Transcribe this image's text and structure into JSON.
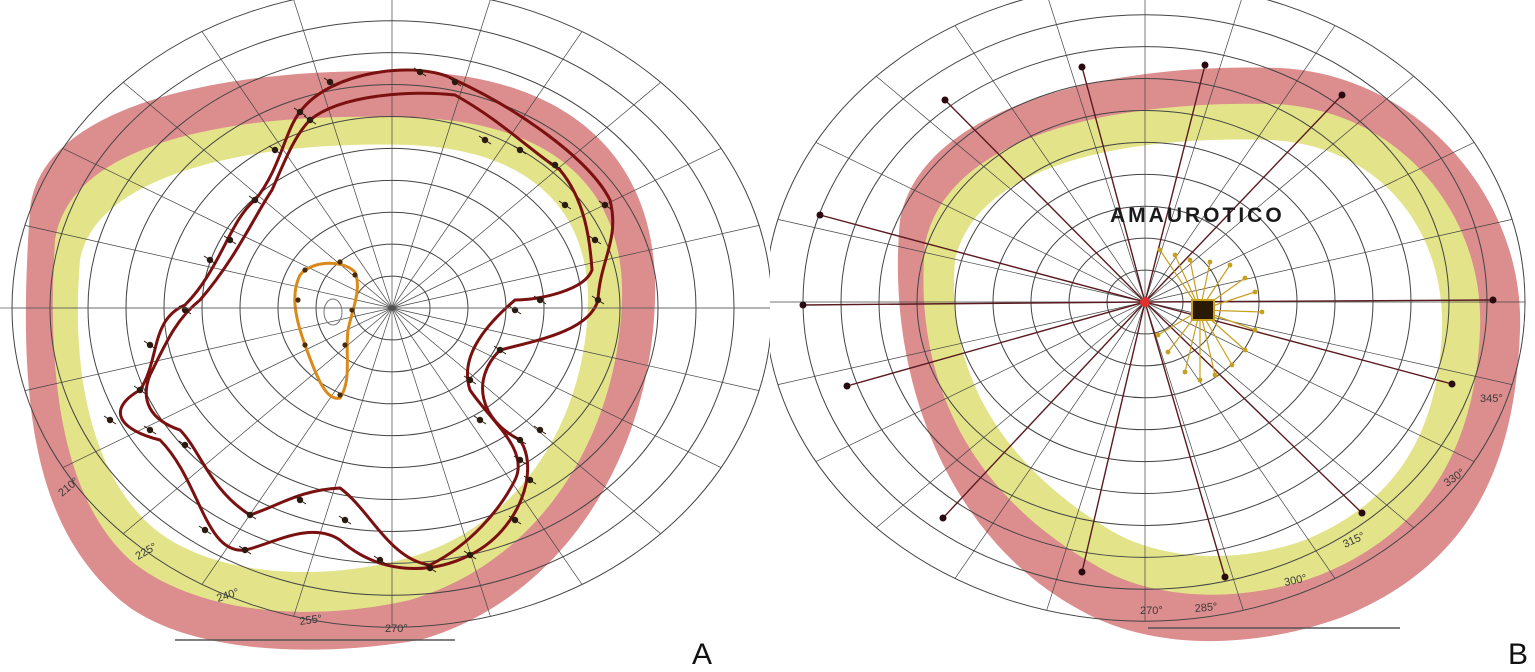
{
  "panels": [
    {
      "letter": "A",
      "degree_labels": [
        "210°",
        "225°",
        "240°",
        "255°",
        "270°"
      ],
      "annotation": ""
    },
    {
      "letter": "B",
      "degree_labels": [
        "345°",
        "330°",
        "315°",
        "300°",
        "285°",
        "270°"
      ],
      "annotation": "AMAUROTICO"
    }
  ],
  "colors": {
    "outer_band": "#dc8d8d",
    "inner_band": "#e3e38a",
    "isopter_dark": "#7a1010",
    "isopter_orange": "#d98a1a",
    "grid": "#444444",
    "ray": "#5a1a20",
    "ray_endpoint": "#2a0a10",
    "center_dot": "#e03030",
    "yellow_arrows": "#c8a020"
  }
}
